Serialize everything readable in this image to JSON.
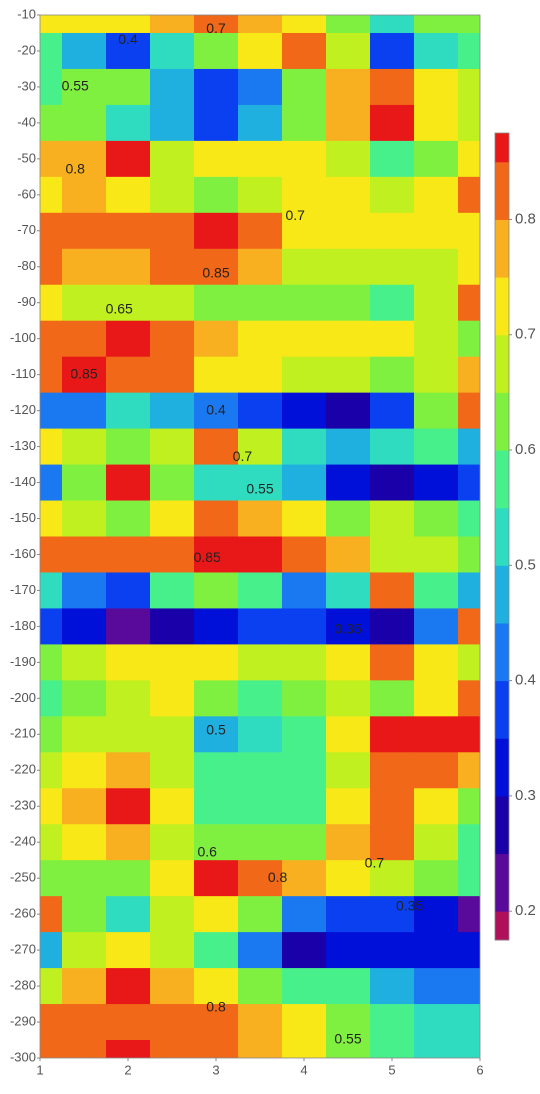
{
  "chart_data": {
    "type": "contourf",
    "x": [
      1,
      1.5,
      2,
      2.5,
      3,
      3.5,
      4,
      4.5,
      5,
      5.5,
      6
    ],
    "y": [
      -10,
      -20,
      -30,
      -40,
      -50,
      -60,
      -70,
      -80,
      -90,
      -100,
      -110,
      -120,
      -130,
      -140,
      -150,
      -160,
      -170,
      -180,
      -190,
      -200,
      -210,
      -220,
      -230,
      -240,
      -250,
      -260,
      -270,
      -280,
      -290,
      -300
    ],
    "z": [
      [
        0.7,
        0.72,
        0.7,
        0.75,
        0.82,
        0.75,
        0.7,
        0.6,
        0.5,
        0.6,
        0.6
      ],
      [
        0.55,
        0.45,
        0.38,
        0.5,
        0.6,
        0.7,
        0.82,
        0.65,
        0.38,
        0.5,
        0.58
      ],
      [
        0.55,
        0.6,
        0.6,
        0.45,
        0.38,
        0.42,
        0.62,
        0.75,
        0.82,
        0.7,
        0.68
      ],
      [
        0.62,
        0.6,
        0.5,
        0.45,
        0.35,
        0.45,
        0.62,
        0.78,
        0.85,
        0.72,
        0.68
      ],
      [
        0.78,
        0.78,
        0.85,
        0.68,
        0.7,
        0.7,
        0.72,
        0.65,
        0.55,
        0.6,
        0.7
      ],
      [
        0.72,
        0.75,
        0.72,
        0.68,
        0.62,
        0.68,
        0.7,
        0.7,
        0.68,
        0.72,
        0.82
      ],
      [
        0.82,
        0.82,
        0.82,
        0.82,
        0.86,
        0.8,
        0.72,
        0.7,
        0.7,
        0.7,
        0.72
      ],
      [
        0.8,
        0.78,
        0.76,
        0.8,
        0.82,
        0.76,
        0.68,
        0.65,
        0.65,
        0.68,
        0.7
      ],
      [
        0.7,
        0.68,
        0.65,
        0.66,
        0.63,
        0.62,
        0.62,
        0.62,
        0.58,
        0.65,
        0.8
      ],
      [
        0.8,
        0.82,
        0.86,
        0.82,
        0.78,
        0.72,
        0.7,
        0.7,
        0.7,
        0.68,
        0.6
      ],
      [
        0.82,
        0.85,
        0.84,
        0.8,
        0.72,
        0.7,
        0.68,
        0.65,
        0.62,
        0.68,
        0.75
      ],
      [
        0.4,
        0.42,
        0.5,
        0.45,
        0.4,
        0.38,
        0.3,
        0.25,
        0.35,
        0.6,
        0.8
      ],
      [
        0.7,
        0.68,
        0.6,
        0.65,
        0.8,
        0.68,
        0.5,
        0.48,
        0.5,
        0.55,
        0.48
      ],
      [
        0.4,
        0.6,
        0.85,
        0.6,
        0.5,
        0.52,
        0.45,
        0.3,
        0.25,
        0.3,
        0.35
      ],
      [
        0.72,
        0.68,
        0.62,
        0.72,
        0.8,
        0.76,
        0.7,
        0.62,
        0.68,
        0.62,
        0.58
      ],
      [
        0.82,
        0.82,
        0.8,
        0.82,
        0.86,
        0.86,
        0.82,
        0.78,
        0.68,
        0.65,
        0.6
      ],
      [
        0.5,
        0.42,
        0.38,
        0.55,
        0.6,
        0.55,
        0.4,
        0.5,
        0.8,
        0.55,
        0.45
      ],
      [
        0.35,
        0.3,
        0.22,
        0.25,
        0.3,
        0.35,
        0.35,
        0.3,
        0.28,
        0.4,
        0.8
      ],
      [
        0.62,
        0.68,
        0.7,
        0.72,
        0.7,
        0.68,
        0.65,
        0.72,
        0.8,
        0.72,
        0.68
      ],
      [
        0.55,
        0.6,
        0.65,
        0.7,
        0.62,
        0.58,
        0.6,
        0.65,
        0.62,
        0.7,
        0.82
      ],
      [
        0.6,
        0.65,
        0.68,
        0.65,
        0.48,
        0.52,
        0.58,
        0.7,
        0.86,
        0.86,
        0.86
      ],
      [
        0.65,
        0.72,
        0.75,
        0.65,
        0.55,
        0.55,
        0.55,
        0.68,
        0.84,
        0.8,
        0.75
      ],
      [
        0.7,
        0.78,
        0.85,
        0.7,
        0.58,
        0.55,
        0.55,
        0.7,
        0.82,
        0.72,
        0.62
      ],
      [
        0.65,
        0.72,
        0.75,
        0.65,
        0.6,
        0.6,
        0.62,
        0.75,
        0.82,
        0.68,
        0.58
      ],
      [
        0.6,
        0.62,
        0.6,
        0.7,
        0.85,
        0.8,
        0.76,
        0.72,
        0.68,
        0.62,
        0.58
      ],
      [
        0.82,
        0.62,
        0.52,
        0.65,
        0.72,
        0.6,
        0.4,
        0.35,
        0.35,
        0.3,
        0.2
      ],
      [
        0.45,
        0.65,
        0.72,
        0.68,
        0.55,
        0.42,
        0.28,
        0.3,
        0.3,
        0.3,
        0.3
      ],
      [
        0.68,
        0.78,
        0.86,
        0.75,
        0.7,
        0.62,
        0.58,
        0.55,
        0.45,
        0.4,
        0.4
      ],
      [
        0.8,
        0.82,
        0.82,
        0.8,
        0.8,
        0.78,
        0.72,
        0.62,
        0.55,
        0.52,
        0.5
      ],
      [
        0.82,
        0.82,
        0.86,
        0.82,
        0.8,
        0.78,
        0.72,
        0.62,
        0.55,
        0.5,
        0.5
      ]
    ],
    "levels": [
      0.175,
      0.2,
      0.25,
      0.3,
      0.35,
      0.4,
      0.45,
      0.5,
      0.55,
      0.6,
      0.65,
      0.7,
      0.75,
      0.8,
      0.85,
      0.875
    ],
    "colors": [
      "#b0105a",
      "#5a0a9a",
      "#1a00a8",
      "#0010d8",
      "#0a40f0",
      "#1a78f0",
      "#20b0e0",
      "#30dcc0",
      "#48f08c",
      "#80f040",
      "#c0f020",
      "#f8e818",
      "#f8b020",
      "#f06818",
      "#e81818"
    ],
    "xlim": [
      1,
      6
    ],
    "ylim": [
      -300,
      -10
    ],
    "xticks": [
      1,
      2,
      3,
      4,
      5,
      6
    ],
    "yticks": [
      -10,
      -20,
      -30,
      -40,
      -50,
      -60,
      -70,
      -80,
      -90,
      -100,
      -110,
      -120,
      -130,
      -140,
      -150,
      -160,
      -170,
      -180,
      -190,
      -200,
      -210,
      -220,
      -230,
      -240,
      -250,
      -260,
      -270,
      -280,
      -290,
      -300
    ],
    "colorbar_ticks": [
      0.2,
      0.3,
      0.4,
      0.5,
      0.6,
      0.7,
      0.8
    ],
    "contour_labels": [
      {
        "x": 2,
        "y": -17,
        "value": 0.4
      },
      {
        "x": 3,
        "y": -14,
        "value": 0.7
      },
      {
        "x": 1.4,
        "y": -30,
        "value": 0.55
      },
      {
        "x": 1.4,
        "y": -53,
        "value": 0.8
      },
      {
        "x": 3.9,
        "y": -66,
        "value": 0.7
      },
      {
        "x": 3,
        "y": -82,
        "value": 0.85
      },
      {
        "x": 1.9,
        "y": -92,
        "value": 0.65
      },
      {
        "x": 1.5,
        "y": -110,
        "value": 0.85
      },
      {
        "x": 3,
        "y": -120,
        "value": 0.4
      },
      {
        "x": 3.3,
        "y": -133,
        "value": 0.7
      },
      {
        "x": 3.5,
        "y": -142,
        "value": 0.55
      },
      {
        "x": 2.9,
        "y": -161,
        "value": 0.85
      },
      {
        "x": 4.5,
        "y": -181,
        "value": 0.35
      },
      {
        "x": 3,
        "y": -209,
        "value": 0.5
      },
      {
        "x": 2.9,
        "y": -243,
        "value": 0.6
      },
      {
        "x": 4.8,
        "y": -246,
        "value": 0.7
      },
      {
        "x": 5.2,
        "y": -258,
        "value": 0.35
      },
      {
        "x": 3.7,
        "y": -250,
        "value": 0.8
      },
      {
        "x": 3,
        "y": -286,
        "value": 0.8
      },
      {
        "x": 4.5,
        "y": -295,
        "value": 0.55
      }
    ]
  }
}
